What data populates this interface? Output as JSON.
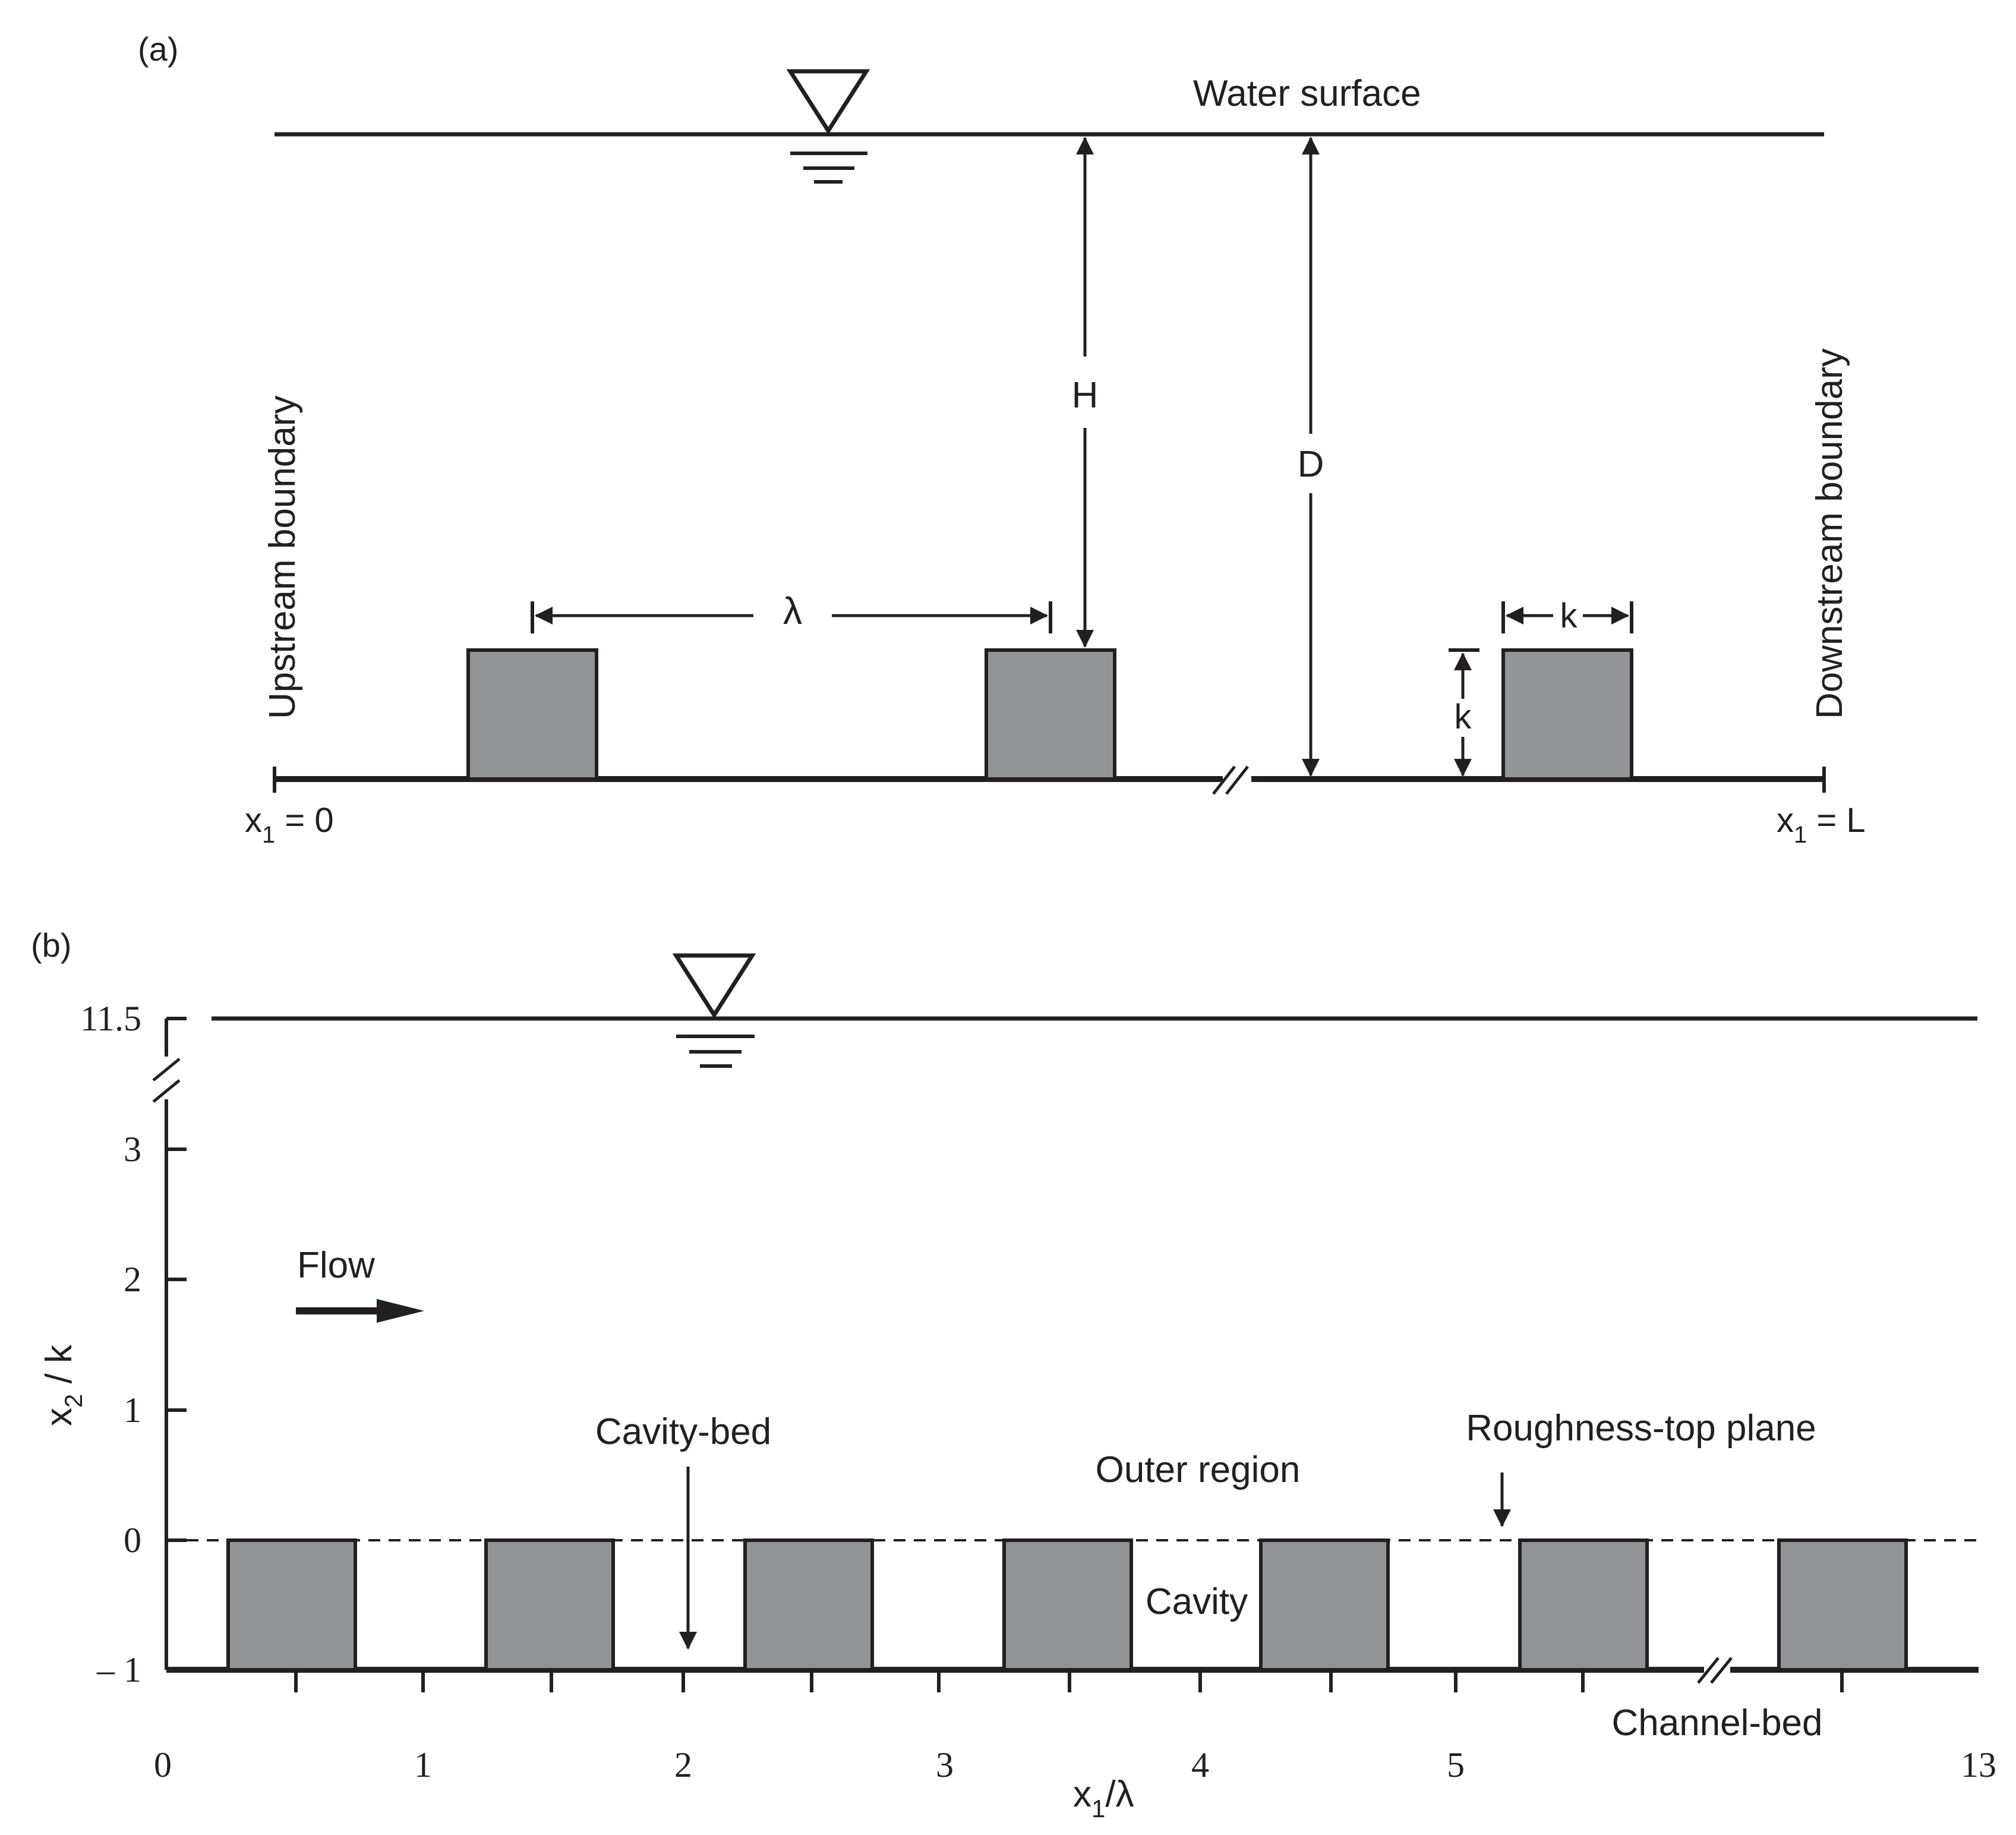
{
  "panel_a": {
    "label": "(a)",
    "water_surface_label": "Water surface",
    "upstream_label": "Upstream boundary",
    "downstream_label": "Downstream boundary",
    "dim_H": "H",
    "dim_D": "D",
    "dim_lambda": "λ",
    "dim_k_width": "k",
    "dim_k_height": "k",
    "x_start": {
      "var": "x",
      "sub": "1",
      "rest": " = 0"
    },
    "x_end": {
      "var": "x",
      "sub": "1",
      "rest": " = L"
    }
  },
  "panel_b": {
    "label": "(b)",
    "flow_label": "Flow",
    "cavity_bed_label": "Cavity-bed",
    "outer_region_label": "Outer region",
    "roughness_top_label": "Roughness-top plane",
    "cavity_label": "Cavity",
    "channel_bed_label": "Channel-bed",
    "y_ticks": [
      "11.5",
      "3",
      "2",
      "1",
      "0",
      "– 1"
    ],
    "x_ticks": [
      "0",
      "1",
      "2",
      "3",
      "4",
      "5",
      "13"
    ],
    "y_axis": {
      "var": "x",
      "sub": "2",
      "rest": " / k"
    },
    "x_axis": {
      "var": "x",
      "sub": "1",
      "rest": "/λ"
    }
  },
  "colors": {
    "line": "#231f20",
    "block_fill": "#929497",
    "background": "#ffffff"
  }
}
